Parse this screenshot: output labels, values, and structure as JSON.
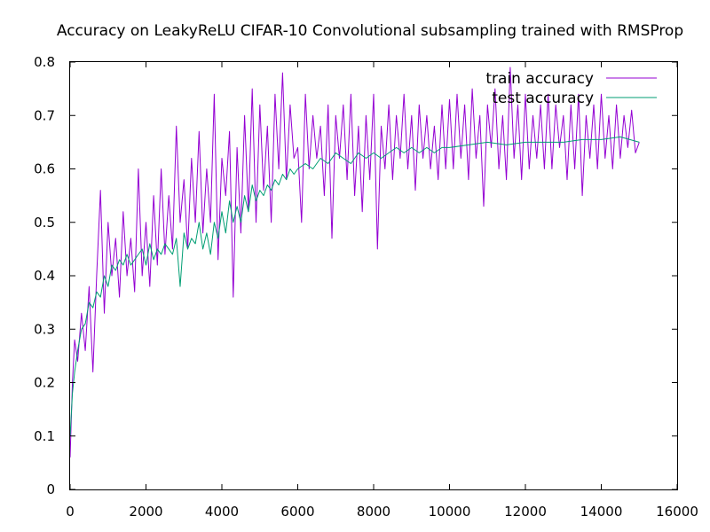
{
  "chart_data": {
    "type": "line",
    "title": "Accuracy on LeakyReLU CIFAR-10 Convolutional subsampling trained with RMSProp",
    "xlabel": "",
    "ylabel": "",
    "xlim": [
      0,
      16000
    ],
    "ylim": [
      0,
      0.8
    ],
    "xticks": [
      0,
      2000,
      4000,
      6000,
      8000,
      10000,
      12000,
      14000,
      16000
    ],
    "yticks": [
      0,
      0.1,
      0.2,
      0.3,
      0.4,
      0.5,
      0.6,
      0.7,
      0.8
    ],
    "xtick_labels": [
      "0",
      "2000",
      "4000",
      "6000",
      "8000",
      "10000",
      "12000",
      "14000",
      "16000"
    ],
    "ytick_labels": [
      "0",
      "0.1",
      "0.2",
      "0.3",
      "0.4",
      "0.5",
      "0.6",
      "0.7",
      "0.8"
    ],
    "grid": false,
    "legend_position": "top-right",
    "series": [
      {
        "name": "train accuracy",
        "color": "#9400d3",
        "x": [
          0,
          60,
          120,
          200,
          300,
          400,
          500,
          600,
          700,
          800,
          900,
          1000,
          1100,
          1200,
          1300,
          1400,
          1500,
          1600,
          1700,
          1800,
          1900,
          2000,
          2100,
          2200,
          2300,
          2400,
          2500,
          2600,
          2700,
          2800,
          2900,
          3000,
          3100,
          3200,
          3300,
          3400,
          3500,
          3600,
          3700,
          3800,
          3900,
          4000,
          4100,
          4200,
          4300,
          4400,
          4500,
          4600,
          4700,
          4800,
          4900,
          5000,
          5100,
          5200,
          5300,
          5400,
          5500,
          5600,
          5700,
          5800,
          5900,
          6000,
          6100,
          6200,
          6300,
          6400,
          6500,
          6600,
          6700,
          6800,
          6900,
          7000,
          7100,
          7200,
          7300,
          7400,
          7500,
          7600,
          7700,
          7800,
          7900,
          8000,
          8100,
          8200,
          8300,
          8400,
          8500,
          8600,
          8700,
          8800,
          8900,
          9000,
          9100,
          9200,
          9300,
          9400,
          9500,
          9600,
          9700,
          9800,
          9900,
          10000,
          10100,
          10200,
          10300,
          10400,
          10500,
          10600,
          10700,
          10800,
          10900,
          11000,
          11100,
          11200,
          11300,
          11400,
          11500,
          11600,
          11700,
          11800,
          11900,
          12000,
          12100,
          12200,
          12300,
          12400,
          12500,
          12600,
          12700,
          12800,
          12900,
          13000,
          13100,
          13200,
          13300,
          13400,
          13500,
          13600,
          13700,
          13800,
          13900,
          14000,
          14100,
          14200,
          14300,
          14400,
          14500,
          14600,
          14700,
          14800,
          14900,
          15000
        ],
        "y": [
          0.06,
          0.2,
          0.28,
          0.24,
          0.33,
          0.26,
          0.38,
          0.22,
          0.4,
          0.56,
          0.33,
          0.5,
          0.4,
          0.47,
          0.36,
          0.52,
          0.4,
          0.47,
          0.37,
          0.6,
          0.4,
          0.5,
          0.38,
          0.55,
          0.42,
          0.6,
          0.44,
          0.55,
          0.45,
          0.68,
          0.5,
          0.58,
          0.45,
          0.62,
          0.5,
          0.67,
          0.48,
          0.6,
          0.5,
          0.74,
          0.43,
          0.62,
          0.55,
          0.67,
          0.36,
          0.64,
          0.48,
          0.7,
          0.52,
          0.75,
          0.5,
          0.72,
          0.56,
          0.68,
          0.5,
          0.74,
          0.6,
          0.78,
          0.58,
          0.72,
          0.62,
          0.64,
          0.5,
          0.74,
          0.6,
          0.7,
          0.62,
          0.68,
          0.55,
          0.72,
          0.47,
          0.7,
          0.62,
          0.72,
          0.58,
          0.74,
          0.55,
          0.68,
          0.52,
          0.7,
          0.58,
          0.74,
          0.45,
          0.68,
          0.6,
          0.72,
          0.58,
          0.7,
          0.62,
          0.74,
          0.6,
          0.7,
          0.56,
          0.72,
          0.62,
          0.7,
          0.6,
          0.68,
          0.58,
          0.72,
          0.6,
          0.73,
          0.6,
          0.74,
          0.62,
          0.72,
          0.58,
          0.75,
          0.62,
          0.7,
          0.53,
          0.72,
          0.64,
          0.75,
          0.6,
          0.7,
          0.58,
          0.79,
          0.62,
          0.72,
          0.58,
          0.74,
          0.6,
          0.7,
          0.62,
          0.72,
          0.6,
          0.74,
          0.6,
          0.72,
          0.64,
          0.7,
          0.58,
          0.72,
          0.6,
          0.74,
          0.55,
          0.7,
          0.62,
          0.72,
          0.6,
          0.74,
          0.62,
          0.7,
          0.6,
          0.72,
          0.62,
          0.7,
          0.64,
          0.71,
          0.63,
          0.65
        ]
      },
      {
        "name": "test accuracy",
        "color": "#009e73",
        "x": [
          0,
          60,
          120,
          200,
          300,
          400,
          500,
          600,
          700,
          800,
          900,
          1000,
          1100,
          1200,
          1300,
          1400,
          1500,
          1600,
          1700,
          1800,
          1900,
          2000,
          2100,
          2200,
          2300,
          2400,
          2500,
          2600,
          2700,
          2800,
          2900,
          3000,
          3100,
          3200,
          3300,
          3400,
          3500,
          3600,
          3700,
          3800,
          3900,
          4000,
          4100,
          4200,
          4300,
          4400,
          4500,
          4600,
          4700,
          4800,
          4900,
          5000,
          5100,
          5200,
          5300,
          5400,
          5500,
          5600,
          5700,
          5800,
          5900,
          6000,
          6200,
          6400,
          6600,
          6800,
          7000,
          7200,
          7400,
          7600,
          7800,
          8000,
          8200,
          8400,
          8600,
          8800,
          9000,
          9200,
          9400,
          9600,
          9800,
          10000,
          10500,
          11000,
          11500,
          12000,
          12500,
          13000,
          13500,
          14000,
          14500,
          15000
        ],
        "y": [
          0.1,
          0.18,
          0.22,
          0.26,
          0.3,
          0.31,
          0.35,
          0.34,
          0.37,
          0.36,
          0.4,
          0.38,
          0.42,
          0.41,
          0.43,
          0.42,
          0.44,
          0.42,
          0.43,
          0.44,
          0.45,
          0.42,
          0.46,
          0.43,
          0.45,
          0.44,
          0.46,
          0.45,
          0.44,
          0.47,
          0.38,
          0.48,
          0.45,
          0.47,
          0.46,
          0.5,
          0.45,
          0.48,
          0.44,
          0.5,
          0.47,
          0.52,
          0.48,
          0.54,
          0.5,
          0.53,
          0.5,
          0.55,
          0.52,
          0.57,
          0.54,
          0.56,
          0.55,
          0.57,
          0.56,
          0.58,
          0.57,
          0.59,
          0.58,
          0.6,
          0.59,
          0.6,
          0.61,
          0.6,
          0.62,
          0.61,
          0.63,
          0.62,
          0.61,
          0.63,
          0.62,
          0.63,
          0.62,
          0.63,
          0.64,
          0.63,
          0.64,
          0.63,
          0.64,
          0.63,
          0.64,
          0.64,
          0.645,
          0.65,
          0.645,
          0.65,
          0.65,
          0.65,
          0.655,
          0.655,
          0.66,
          0.65
        ]
      }
    ]
  }
}
